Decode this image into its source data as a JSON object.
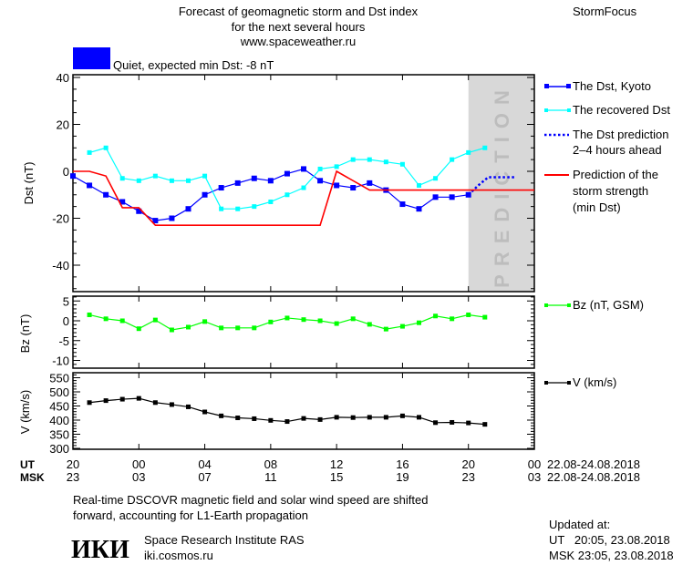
{
  "header": {
    "title_lines": [
      "Forecast of geomagnetic storm and Dst index",
      "for the next several hours",
      "www.spaceweather.ru"
    ],
    "brand": "StormFocus",
    "status_text": "Quiet, expected min Dst: -8 nT",
    "status_color": "#0000ff"
  },
  "chart_data": [
    {
      "type": "line",
      "ylabel": "Dst (nT)",
      "ylim": [
        -50,
        42
      ],
      "yticks": [
        "40",
        "20",
        "0",
        "-20",
        "-40"
      ],
      "ytick_values": [
        40,
        20,
        0,
        -20,
        -40
      ],
      "x_unit": "hours UT from 20:00 22.08.2018",
      "prediction_zone": {
        "label": "PREDICTION",
        "from_hour": 44,
        "to_hour": 48,
        "color": "#d8d8d8"
      },
      "series": [
        {
          "name": "The Dst, Kyoto",
          "color": "#0000ff",
          "marker": "square",
          "x": [
            20,
            21,
            22,
            23,
            24,
            25,
            26,
            27,
            28,
            29,
            30,
            31,
            32,
            33,
            34,
            35,
            36,
            37,
            38,
            39,
            40,
            41,
            42,
            43,
            44
          ],
          "values": [
            -2,
            -6,
            -10,
            -13,
            -17,
            -21,
            -20,
            -16,
            -10,
            -7,
            -5,
            -3,
            -4,
            -1,
            1,
            -4,
            -6,
            -7,
            -5,
            -8,
            -14,
            -16,
            -11,
            -11,
            -10
          ]
        },
        {
          "name": "The recovered Dst",
          "color": "#00ffff",
          "marker": "square",
          "x": [
            21,
            22,
            23,
            24,
            25,
            26,
            27,
            28,
            29,
            30,
            31,
            32,
            33,
            34,
            35,
            36,
            37,
            38,
            39,
            40,
            41,
            42,
            43,
            44,
            45
          ],
          "values": [
            8,
            10,
            -3,
            -4,
            -2,
            -4,
            -4,
            -2,
            -16,
            -16,
            -15,
            -13,
            -10,
            -7,
            1,
            2,
            5,
            5,
            4,
            3,
            -6,
            -3,
            5,
            8,
            10
          ]
        },
        {
          "name": "The Dst prediction 2-4 hours ahead",
          "color": "#0000ff",
          "style": "dotted",
          "x": [
            44,
            44.6,
            45.2,
            46.8
          ],
          "values": [
            -10,
            -6,
            -2.5,
            -2.5
          ]
        },
        {
          "name": "Prediction of the storm strength (min Dst)",
          "color": "#ff0000",
          "x": [
            20,
            21,
            22,
            23,
            24,
            25,
            35,
            36,
            38,
            48
          ],
          "values": [
            0,
            0,
            -2,
            -15.5,
            -15.5,
            -23,
            -23,
            0,
            -8,
            -8
          ]
        }
      ]
    },
    {
      "type": "line",
      "ylabel": "Bz (nT)",
      "ylim": [
        -12,
        6.5
      ],
      "yticks": [
        "5",
        "0",
        "-5",
        "-10"
      ],
      "ytick_values": [
        5,
        0,
        -5,
        -10
      ],
      "series": [
        {
          "name": "Bz (nT, GSM)",
          "color": "#00ff00",
          "marker": "square",
          "x": [
            21,
            22,
            23,
            24,
            25,
            26,
            27,
            28,
            29,
            30,
            31,
            32,
            33,
            34,
            35,
            36,
            37,
            38,
            39,
            40,
            41,
            42,
            43,
            44,
            45
          ],
          "values": [
            1.5,
            0.5,
            0,
            -2,
            0.2,
            -2.3,
            -1.6,
            -0.2,
            -1.8,
            -1.8,
            -1.8,
            -0.3,
            0.7,
            0.3,
            0,
            -0.7,
            0.5,
            -0.9,
            -2.1,
            -1.4,
            -0.5,
            1.2,
            0.5,
            1.5,
            0.9
          ]
        }
      ]
    },
    {
      "type": "line",
      "ylabel": "V (km/s)",
      "ylim": [
        285,
        570
      ],
      "yticks": [
        "550",
        "500",
        "450",
        "400",
        "350",
        "300"
      ],
      "ytick_values": [
        550,
        500,
        450,
        400,
        350,
        300
      ],
      "series": [
        {
          "name": "V (km/s)",
          "color": "#000000",
          "marker": "square",
          "x": [
            21,
            22,
            23,
            24,
            25,
            26,
            27,
            28,
            29,
            30,
            31,
            32,
            33,
            34,
            35,
            36,
            37,
            38,
            39,
            40,
            41,
            42,
            43,
            44,
            45
          ],
          "values": [
            462,
            469,
            474,
            477,
            462,
            455,
            447,
            429,
            415,
            408,
            405,
            399,
            395,
            406,
            402,
            410,
            409,
            410,
            410,
            415,
            410,
            391,
            392,
            390,
            385
          ]
        }
      ]
    }
  ],
  "x_axis": {
    "ut_label": "UT",
    "msk_label": "MSK",
    "ut_ticks": [
      "20",
      "00",
      "04",
      "08",
      "12",
      "16",
      "20",
      "00"
    ],
    "msk_ticks": [
      "23",
      "03",
      "07",
      "11",
      "15",
      "19",
      "23",
      "03"
    ],
    "ut_date_range": "22.08-24.08.2018",
    "msk_date_range": "22.08-24.08.2018"
  },
  "footer": {
    "note_lines": [
      "Real-time DSCOVR magnetic field and solar wind speed are shifted",
      "forward, accounting for L1-Earth propagation"
    ],
    "logo_text": "ИКИ",
    "institute": "Space Research Institute RAS",
    "website": "iki.cosmos.ru",
    "updated_label": "Updated at:",
    "updated_ut": "UT   20:05, 23.08.2018",
    "updated_msk": "MSK 23:05, 23.08.2018"
  }
}
